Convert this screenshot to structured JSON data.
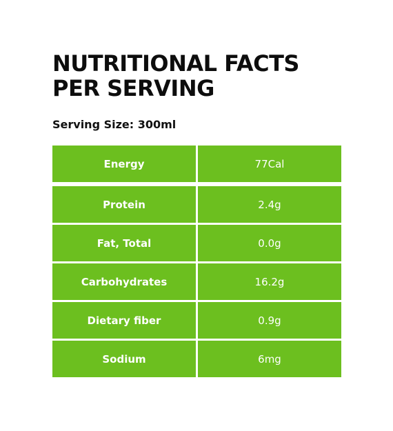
{
  "title": {
    "line1": "NUTRITIONAL FACTS",
    "line2": "PER SERVING"
  },
  "serving_size": "Serving Size: 300ml",
  "table": {
    "rows": [
      {
        "nutrient": "Energy",
        "value": "77Cal"
      },
      {
        "nutrient": "Protein",
        "value": "2.4g"
      },
      {
        "nutrient": "Fat, Total",
        "value": "0.0g"
      },
      {
        "nutrient": "Carbohydrates",
        "value": "16.2g"
      },
      {
        "nutrient": "Dietary fiber",
        "value": "0.9g"
      },
      {
        "nutrient": "Sodium",
        "value": "6mg"
      }
    ]
  },
  "colors": {
    "cell_background": "#6cbf1f",
    "cell_text": "#ffffff",
    "title_text": "#0d0d0d"
  }
}
